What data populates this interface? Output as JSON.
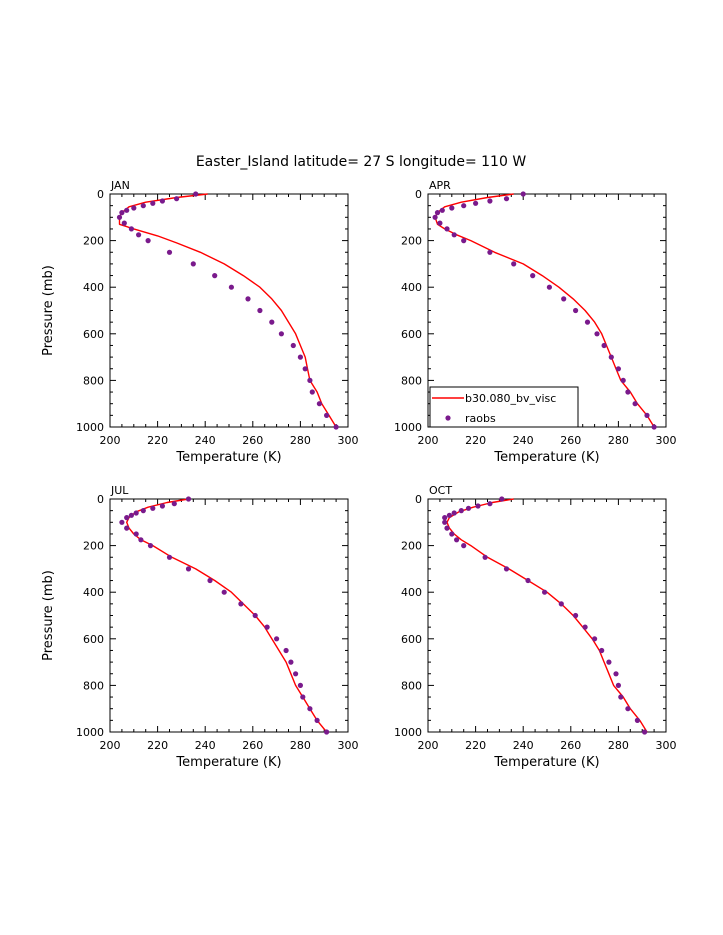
{
  "title": "Easter_Island  latitude= 27 S longitude= 110 W",
  "legend": {
    "model_label": "b30.080_bv_visc",
    "obs_label": "raobs"
  },
  "colors": {
    "model": "#ff0000",
    "obs": "#7a1a8c"
  },
  "chart_data": [
    {
      "type": "line",
      "panel": "JAN",
      "xlabel": "Temperature (K)",
      "ylabel": "Pressure (mb)",
      "xlim": [
        200,
        300
      ],
      "ylim": [
        1000,
        0
      ],
      "y_inverted": true,
      "xticks": [
        200,
        220,
        240,
        260,
        280,
        300
      ],
      "yticks": [
        0,
        200,
        400,
        600,
        800,
        1000
      ],
      "series": [
        {
          "name": "b30.080_bv_visc",
          "kind": "line",
          "points": [
            [
              241,
              0
            ],
            [
              228,
              15
            ],
            [
              215,
              35
            ],
            [
              208,
              55
            ],
            [
              205,
              80
            ],
            [
              204,
              100
            ],
            [
              204,
              130
            ],
            [
              210,
              150
            ],
            [
              220,
              180
            ],
            [
              228,
              210
            ],
            [
              238,
              250
            ],
            [
              248,
              300
            ],
            [
              256,
              350
            ],
            [
              263,
              400
            ],
            [
              268,
              450
            ],
            [
              272,
              500
            ],
            [
              275,
              550
            ],
            [
              278,
              600
            ],
            [
              280,
              650
            ],
            [
              282,
              700
            ],
            [
              283,
              750
            ],
            [
              284,
              800
            ],
            [
              287,
              850
            ],
            [
              289,
              900
            ],
            [
              292,
              950
            ],
            [
              295,
              1000
            ]
          ]
        },
        {
          "name": "raobs",
          "kind": "scatter",
          "points": [
            [
              236,
              0
            ],
            [
              228,
              20
            ],
            [
              222,
              30
            ],
            [
              218,
              40
            ],
            [
              214,
              50
            ],
            [
              210,
              60
            ],
            [
              207,
              70
            ],
            [
              205,
              80
            ],
            [
              204,
              100
            ],
            [
              206,
              125
            ],
            [
              209,
              150
            ],
            [
              212,
              175
            ],
            [
              216,
              200
            ],
            [
              225,
              250
            ],
            [
              235,
              300
            ],
            [
              244,
              350
            ],
            [
              251,
              400
            ],
            [
              258,
              450
            ],
            [
              263,
              500
            ],
            [
              268,
              550
            ],
            [
              272,
              600
            ],
            [
              277,
              650
            ],
            [
              280,
              700
            ],
            [
              282,
              750
            ],
            [
              284,
              800
            ],
            [
              285,
              850
            ],
            [
              288,
              900
            ],
            [
              291,
              950
            ],
            [
              295,
              1000
            ]
          ]
        }
      ]
    },
    {
      "type": "line",
      "panel": "APR",
      "xlabel": "Temperature (K)",
      "ylabel": "",
      "xlim": [
        200,
        300
      ],
      "ylim": [
        1000,
        0
      ],
      "y_inverted": true,
      "xticks": [
        200,
        220,
        240,
        260,
        280,
        300
      ],
      "yticks": [
        0,
        200,
        400,
        600,
        800,
        1000
      ],
      "series": [
        {
          "name": "b30.080_bv_visc",
          "kind": "line",
          "points": [
            [
              236,
              0
            ],
            [
              225,
              15
            ],
            [
              214,
              35
            ],
            [
              207,
              55
            ],
            [
              204,
              80
            ],
            [
              203,
              100
            ],
            [
              204,
              130
            ],
            [
              207,
              150
            ],
            [
              212,
              175
            ],
            [
              218,
              200
            ],
            [
              228,
              250
            ],
            [
              240,
              300
            ],
            [
              248,
              350
            ],
            [
              255,
              400
            ],
            [
              261,
              450
            ],
            [
              266,
              500
            ],
            [
              270,
              550
            ],
            [
              273,
              600
            ],
            [
              275,
              650
            ],
            [
              277,
              700
            ],
            [
              279,
              750
            ],
            [
              281,
              800
            ],
            [
              285,
              850
            ],
            [
              288,
              900
            ],
            [
              292,
              950
            ],
            [
              295,
              1000
            ]
          ]
        },
        {
          "name": "raobs",
          "kind": "scatter",
          "points": [
            [
              240,
              0
            ],
            [
              233,
              20
            ],
            [
              226,
              30
            ],
            [
              220,
              40
            ],
            [
              215,
              50
            ],
            [
              210,
              60
            ],
            [
              206,
              70
            ],
            [
              204,
              80
            ],
            [
              203,
              100
            ],
            [
              205,
              125
            ],
            [
              208,
              150
            ],
            [
              211,
              175
            ],
            [
              215,
              200
            ],
            [
              226,
              250
            ],
            [
              236,
              300
            ],
            [
              244,
              350
            ],
            [
              251,
              400
            ],
            [
              257,
              450
            ],
            [
              262,
              500
            ],
            [
              267,
              550
            ],
            [
              271,
              600
            ],
            [
              274,
              650
            ],
            [
              277,
              700
            ],
            [
              280,
              750
            ],
            [
              282,
              800
            ],
            [
              284,
              850
            ],
            [
              287,
              900
            ],
            [
              292,
              950
            ],
            [
              295,
              1000
            ]
          ]
        }
      ]
    },
    {
      "type": "line",
      "panel": "JUL",
      "xlabel": "Temperature (K)",
      "ylabel": "Pressure (mb)",
      "xlim": [
        200,
        300
      ],
      "ylim": [
        1000,
        0
      ],
      "y_inverted": true,
      "xticks": [
        200,
        220,
        240,
        260,
        280,
        300
      ],
      "yticks": [
        0,
        200,
        400,
        600,
        800,
        1000
      ],
      "series": [
        {
          "name": "b30.080_bv_visc",
          "kind": "line",
          "points": [
            [
              233,
              0
            ],
            [
              224,
              15
            ],
            [
              216,
              35
            ],
            [
              211,
              55
            ],
            [
              208,
              80
            ],
            [
              207,
              100
            ],
            [
              208,
              125
            ],
            [
              210,
              150
            ],
            [
              213,
              175
            ],
            [
              218,
              200
            ],
            [
              226,
              250
            ],
            [
              236,
              300
            ],
            [
              244,
              350
            ],
            [
              251,
              400
            ],
            [
              256,
              450
            ],
            [
              261,
              500
            ],
            [
              265,
              550
            ],
            [
              268,
              600
            ],
            [
              271,
              650
            ],
            [
              274,
              700
            ],
            [
              276,
              750
            ],
            [
              278,
              800
            ],
            [
              281,
              850
            ],
            [
              284,
              900
            ],
            [
              287,
              950
            ],
            [
              291,
              1000
            ]
          ]
        },
        {
          "name": "raobs",
          "kind": "scatter",
          "points": [
            [
              233,
              0
            ],
            [
              227,
              20
            ],
            [
              222,
              30
            ],
            [
              218,
              40
            ],
            [
              214,
              50
            ],
            [
              211,
              60
            ],
            [
              209,
              70
            ],
            [
              207,
              80
            ],
            [
              205,
              100
            ],
            [
              207,
              125
            ],
            [
              211,
              150
            ],
            [
              213,
              175
            ],
            [
              217,
              200
            ],
            [
              225,
              250
            ],
            [
              233,
              300
            ],
            [
              242,
              350
            ],
            [
              248,
              400
            ],
            [
              255,
              450
            ],
            [
              261,
              500
            ],
            [
              266,
              550
            ],
            [
              270,
              600
            ],
            [
              274,
              650
            ],
            [
              276,
              700
            ],
            [
              278,
              750
            ],
            [
              280,
              800
            ],
            [
              281,
              850
            ],
            [
              284,
              900
            ],
            [
              287,
              950
            ],
            [
              291,
              1000
            ]
          ]
        }
      ]
    },
    {
      "type": "line",
      "panel": "OCT",
      "xlabel": "Temperature (K)",
      "ylabel": "",
      "xlim": [
        200,
        300
      ],
      "ylim": [
        1000,
        0
      ],
      "y_inverted": true,
      "xticks": [
        200,
        220,
        240,
        260,
        280,
        300
      ],
      "yticks": [
        0,
        200,
        400,
        600,
        800,
        1000
      ],
      "series": [
        {
          "name": "b30.080_bv_visc",
          "kind": "line",
          "points": [
            [
              236,
              0
            ],
            [
              227,
              15
            ],
            [
              219,
              35
            ],
            [
              213,
              55
            ],
            [
              209,
              80
            ],
            [
              208,
              100
            ],
            [
              209,
              125
            ],
            [
              211,
              150
            ],
            [
              214,
              175
            ],
            [
              218,
              200
            ],
            [
              225,
              250
            ],
            [
              234,
              300
            ],
            [
              242,
              350
            ],
            [
              250,
              400
            ],
            [
              256,
              450
            ],
            [
              261,
              500
            ],
            [
              265,
              550
            ],
            [
              269,
              600
            ],
            [
              272,
              650
            ],
            [
              274,
              700
            ],
            [
              276,
              750
            ],
            [
              278,
              800
            ],
            [
              282,
              850
            ],
            [
              285,
              900
            ],
            [
              289,
              950
            ],
            [
              292,
              1000
            ]
          ]
        },
        {
          "name": "raobs",
          "kind": "scatter",
          "points": [
            [
              231,
              0
            ],
            [
              226,
              20
            ],
            [
              221,
              30
            ],
            [
              217,
              40
            ],
            [
              214,
              50
            ],
            [
              211,
              60
            ],
            [
              209,
              70
            ],
            [
              207,
              80
            ],
            [
              207,
              100
            ],
            [
              208,
              125
            ],
            [
              210,
              150
            ],
            [
              212,
              175
            ],
            [
              215,
              200
            ],
            [
              224,
              250
            ],
            [
              233,
              300
            ],
            [
              242,
              350
            ],
            [
              249,
              400
            ],
            [
              256,
              450
            ],
            [
              262,
              500
            ],
            [
              266,
              550
            ],
            [
              270,
              600
            ],
            [
              273,
              650
            ],
            [
              276,
              700
            ],
            [
              279,
              750
            ],
            [
              280,
              800
            ],
            [
              281,
              850
            ],
            [
              284,
              900
            ],
            [
              288,
              950
            ],
            [
              291,
              1000
            ]
          ]
        }
      ]
    }
  ]
}
